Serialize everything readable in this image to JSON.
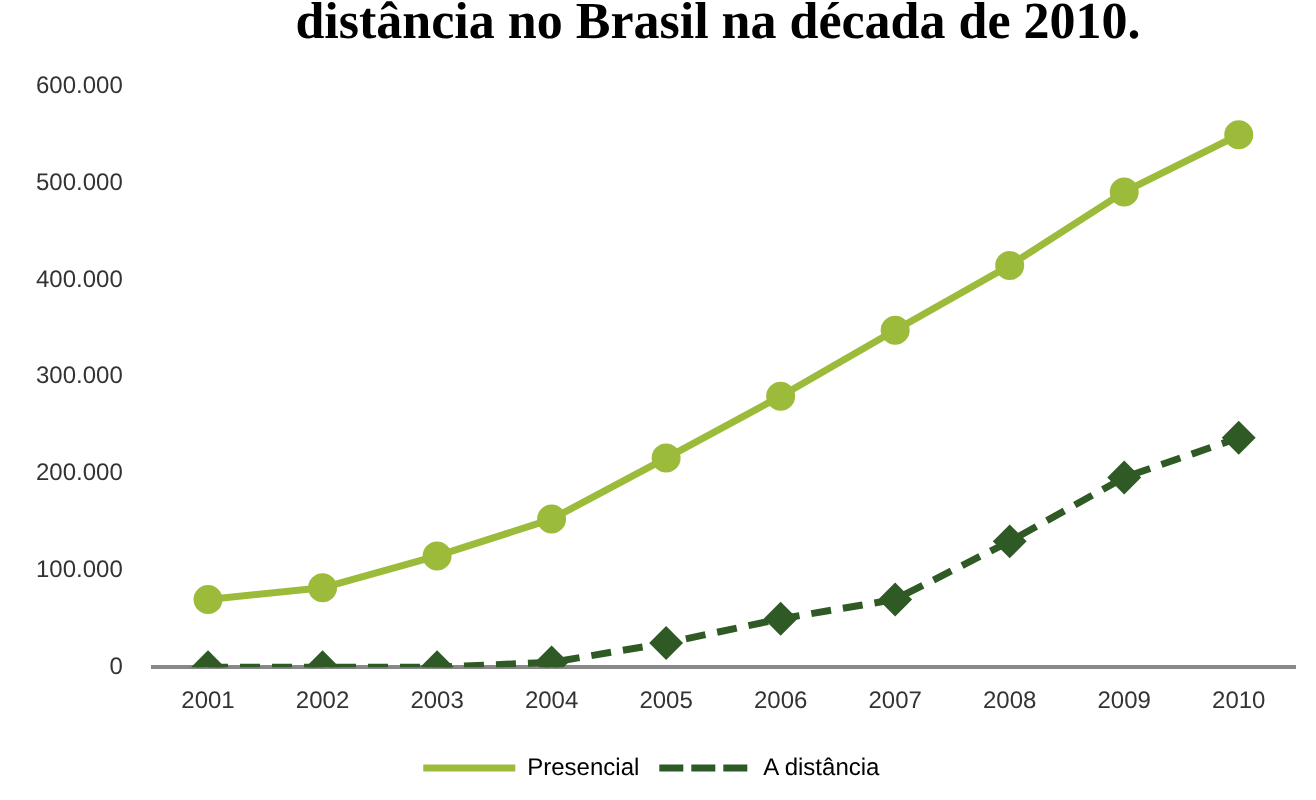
{
  "chart_data": {
    "type": "line",
    "title": "distância no Brasil na década de 2010.",
    "categories": [
      "2001",
      "2002",
      "2003",
      "2004",
      "2005",
      "2006",
      "2007",
      "2008",
      "2009",
      "2010"
    ],
    "series": [
      {
        "name": "Presencial",
        "color": "#9cbb3b",
        "marker": "circle",
        "line_style": "solid",
        "values": [
          70000,
          82000,
          115000,
          153000,
          216000,
          280000,
          348000,
          415000,
          491000,
          550000
        ]
      },
      {
        "name": "A distância",
        "color": "#2f5a25",
        "marker": "diamond",
        "line_style": "dashed",
        "values": [
          0,
          0,
          0,
          5000,
          25000,
          50000,
          70000,
          130000,
          196000,
          237000
        ]
      }
    ],
    "ylim": [
      0,
      600000
    ],
    "yticks": [
      0,
      {
        "value": 100000,
        "label": "100.000"
      },
      {
        "value": 200000,
        "label": "200.000"
      },
      {
        "value": 300000,
        "label": "300.000"
      },
      {
        "value": 400000,
        "label": "400.000"
      },
      {
        "value": 500000,
        "label": "500.000"
      },
      {
        "value": 600000,
        "label": "600.000"
      }
    ],
    "grid": false,
    "legend": "bottom"
  }
}
